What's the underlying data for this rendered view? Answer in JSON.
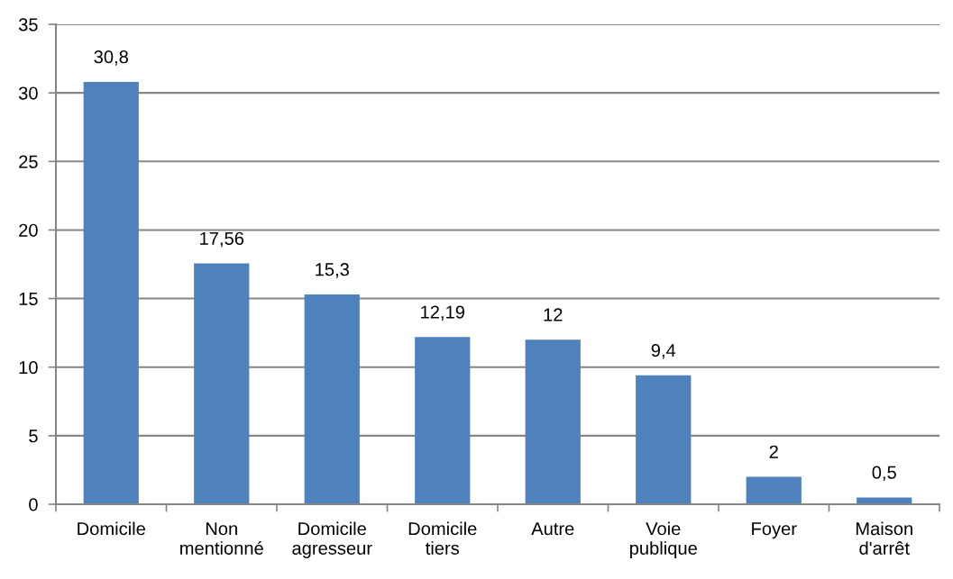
{
  "chart_data": {
    "type": "bar",
    "categories": [
      "Domicile",
      "Non\nmentionné",
      "Domicile\nagresseur",
      "Domicile\ntiers",
      "Autre",
      "Voie\npublique",
      "Foyer",
      "Maison\nd'arrêt"
    ],
    "values": [
      30.8,
      17.56,
      15.3,
      12.19,
      12,
      9.4,
      2,
      0.5
    ],
    "value_labels": [
      "30,8",
      "17,56",
      "15,3",
      "12,19",
      "12",
      "9,4",
      "2",
      "0,5"
    ],
    "color": "#4f81bd",
    "ylim": [
      0,
      35
    ],
    "yticks": [
      0,
      5,
      10,
      15,
      20,
      25,
      30,
      35
    ],
    "grid": "y",
    "legend": false
  }
}
